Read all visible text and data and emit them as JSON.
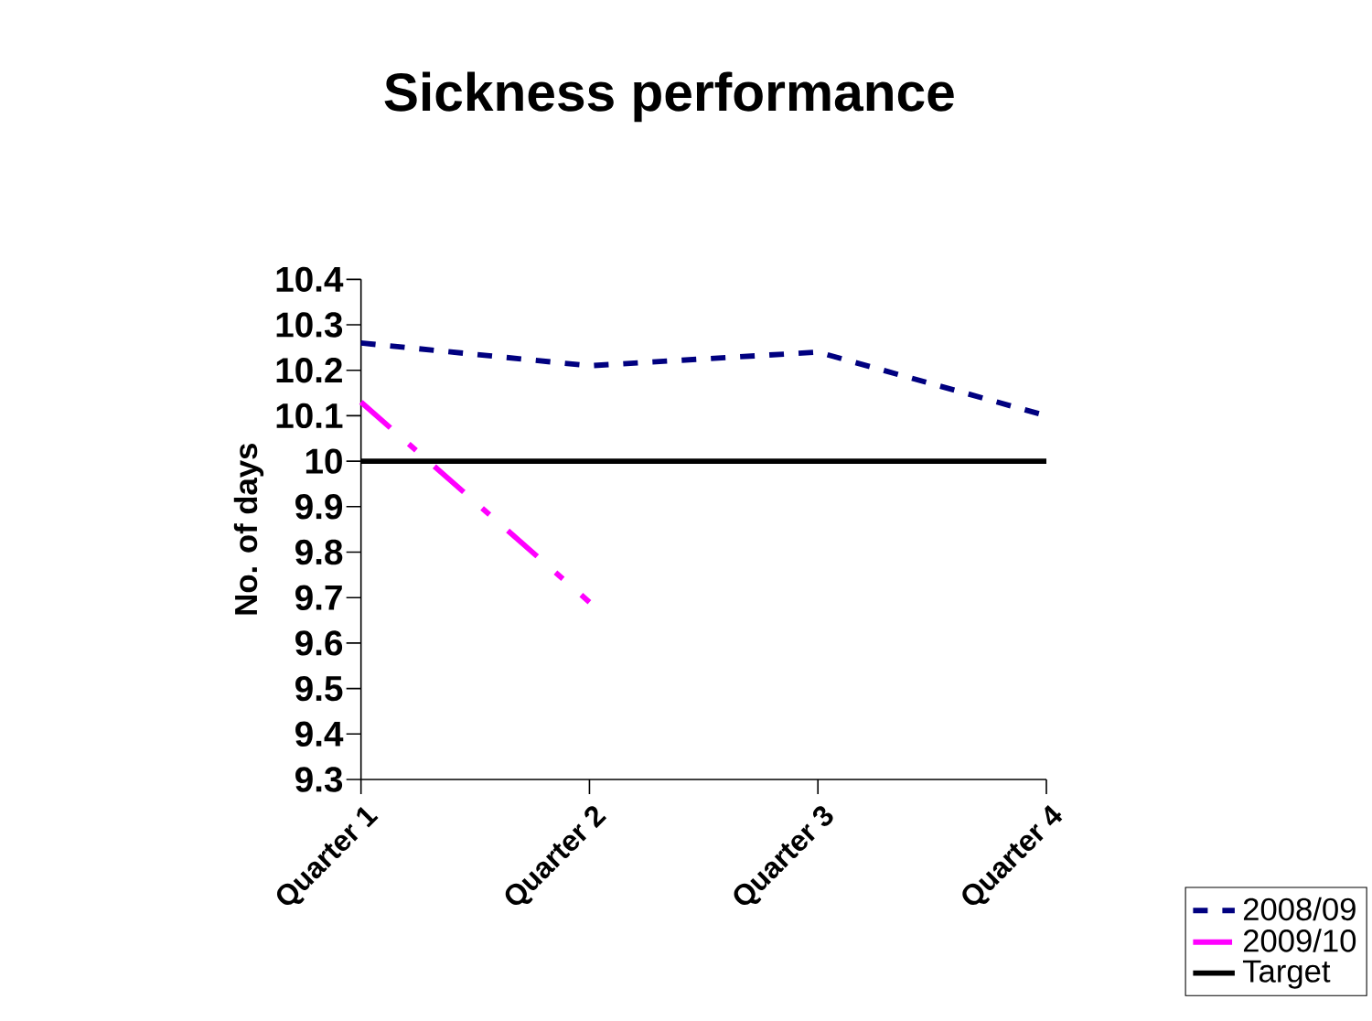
{
  "chart_data": {
    "type": "line",
    "title": "Sickness performance",
    "ylabel": "No. of days",
    "categories": [
      "Quarter 1",
      "Quarter 2",
      "Quarter 3",
      "Quarter 4"
    ],
    "series": [
      {
        "name": "2008/09",
        "color": "#000080",
        "values": [
          10.26,
          10.21,
          10.24,
          10.1
        ],
        "line_style": "dashed"
      },
      {
        "name": "2009/10",
        "color": "#ff00ff",
        "values": [
          10.13,
          9.69,
          null,
          null
        ],
        "line_style": "dashdot"
      },
      {
        "name": "Target",
        "color": "#000000",
        "values": [
          10,
          10,
          10,
          10
        ],
        "line_style": "solid"
      }
    ],
    "ylim": [
      9.3,
      10.4
    ],
    "yticks": [
      9.3,
      9.4,
      9.5,
      9.6,
      9.7,
      9.8,
      9.9,
      10,
      10.1,
      10.2,
      10.3,
      10.4
    ],
    "legend": "bottom right",
    "marker": "none",
    "grid": false
  }
}
